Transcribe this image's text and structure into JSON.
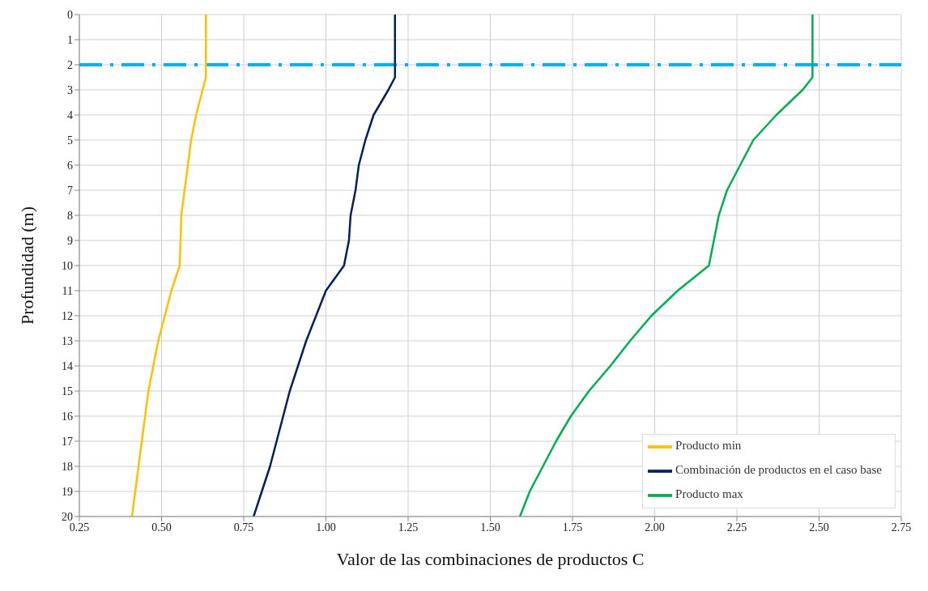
{
  "chart_data": {
    "type": "line",
    "xlabel": "Valor de las combinaciones de productos C",
    "ylabel": "Profundidad (m)",
    "xlim": [
      0.25,
      2.75
    ],
    "xticks": [
      0.25,
      {
        "value": 0.5,
        "label": "0.50"
      },
      0.75,
      {
        "value": 1,
        "label": "1.00"
      },
      1.25,
      {
        "value": 1.5,
        "label": "1.50"
      },
      1.75,
      {
        "value": 2,
        "label": "2.00"
      },
      2.25,
      {
        "value": 2.5,
        "label": "2.50"
      },
      2.75
    ],
    "ylim": [
      20,
      0
    ],
    "yticks": [
      0,
      1,
      2,
      3,
      4,
      5,
      6,
      7,
      8,
      9,
      10,
      11,
      12,
      13,
      14,
      15,
      16,
      17,
      18,
      19,
      20
    ],
    "grid": true,
    "legend": "bottom right",
    "marker": "none",
    "line_style": "solid",
    "ref_lines": [
      {
        "axis": "y",
        "value": 2,
        "color": "#00b0f0",
        "line_style": "dashdot"
      }
    ],
    "series": [
      {
        "name": "Producto min",
        "color": "#ffc000",
        "x": [
          0.635,
          0.635,
          0.635,
          0.625,
          0.605,
          0.59,
          0.58,
          0.57,
          0.56,
          0.558,
          0.555,
          0.53,
          0.51,
          0.49,
          0.475,
          0.46,
          0.45,
          0.44,
          0.43,
          0.42,
          0.41
        ],
        "values": [
          0,
          2,
          2.5,
          3,
          4,
          5,
          6,
          7,
          8,
          9,
          10,
          11,
          12,
          13,
          14,
          15,
          16,
          17,
          18,
          19,
          20
        ]
      },
      {
        "name": "Combinación de productos en el caso base",
        "color": "#002060",
        "x": [
          1.21,
          1.21,
          1.21,
          1.19,
          1.145,
          1.12,
          1.1,
          1.09,
          1.075,
          1.07,
          1.055,
          1.0,
          0.97,
          0.94,
          0.915,
          0.89,
          0.87,
          0.85,
          0.83,
          0.805,
          0.78
        ],
        "values": [
          0,
          2,
          2.5,
          3,
          4,
          5,
          6,
          7,
          8,
          9,
          10,
          11,
          12,
          13,
          14,
          15,
          16,
          17,
          18,
          19,
          20
        ]
      },
      {
        "name": "Producto max",
        "color": "#00b050",
        "x": [
          2.48,
          2.48,
          2.48,
          2.45,
          2.37,
          2.3,
          2.26,
          2.22,
          2.195,
          2.18,
          2.165,
          2.07,
          1.99,
          1.925,
          1.865,
          1.8,
          1.745,
          1.7,
          1.66,
          1.62,
          1.59
        ],
        "values": [
          0,
          2,
          2.5,
          3,
          4,
          5,
          6,
          7,
          8,
          9,
          10,
          11,
          12,
          13,
          14,
          15,
          16,
          17,
          18,
          19,
          20
        ]
      }
    ]
  }
}
